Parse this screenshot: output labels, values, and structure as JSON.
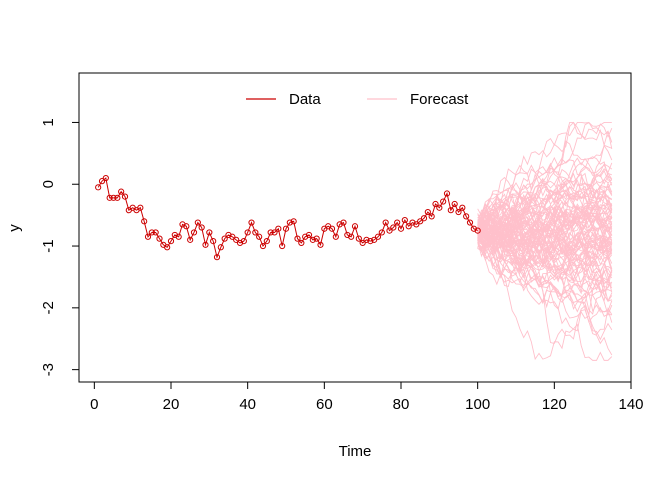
{
  "chart_data": {
    "type": "line",
    "title": "",
    "xlabel": "Time",
    "ylabel": "y",
    "xlim": [
      -4,
      140
    ],
    "ylim": [
      -3.2,
      1.8
    ],
    "xticks": [
      0,
      20,
      40,
      60,
      80,
      100,
      120,
      140
    ],
    "yticks": [
      -3,
      -2,
      -1,
      0,
      1
    ],
    "legend": {
      "placement": "top-center",
      "entries": [
        {
          "label": "Data",
          "color": "#cc0000"
        },
        {
          "label": "Forecast",
          "color": "#ffc0cb"
        }
      ]
    },
    "series": [
      {
        "name": "Data",
        "color": "#cc0000",
        "markers": "open-circle",
        "x": [
          1,
          2,
          3,
          4,
          5,
          6,
          7,
          8,
          9,
          10,
          11,
          12,
          13,
          14,
          15,
          16,
          17,
          18,
          19,
          20,
          21,
          22,
          23,
          24,
          25,
          26,
          27,
          28,
          29,
          30,
          31,
          32,
          33,
          34,
          35,
          36,
          37,
          38,
          39,
          40,
          41,
          42,
          43,
          44,
          45,
          46,
          47,
          48,
          49,
          50,
          51,
          52,
          53,
          54,
          55,
          56,
          57,
          58,
          59,
          60,
          61,
          62,
          63,
          64,
          65,
          66,
          67,
          68,
          69,
          70,
          71,
          72,
          73,
          74,
          75,
          76,
          77,
          78,
          79,
          80,
          81,
          82,
          83,
          84,
          85,
          86,
          87,
          88,
          89,
          90,
          91,
          92,
          93,
          94,
          95,
          96,
          97,
          98,
          99,
          100
        ],
        "y": [
          -0.05,
          0.05,
          0.1,
          -0.22,
          -0.22,
          -0.22,
          -0.12,
          -0.2,
          -0.42,
          -0.38,
          -0.42,
          -0.38,
          -0.6,
          -0.85,
          -0.78,
          -0.78,
          -0.88,
          -0.98,
          -1.02,
          -0.92,
          -0.82,
          -0.85,
          -0.65,
          -0.68,
          -0.9,
          -0.78,
          -0.62,
          -0.7,
          -0.98,
          -0.78,
          -0.92,
          -1.18,
          -1.02,
          -0.88,
          -0.82,
          -0.85,
          -0.9,
          -0.95,
          -0.92,
          -0.78,
          -0.62,
          -0.78,
          -0.85,
          -1.0,
          -0.92,
          -0.78,
          -0.78,
          -0.72,
          -1.0,
          -0.72,
          -0.62,
          -0.6,
          -0.88,
          -0.95,
          -0.85,
          -0.82,
          -0.9,
          -0.88,
          -0.98,
          -0.72,
          -0.68,
          -0.72,
          -0.85,
          -0.65,
          -0.62,
          -0.82,
          -0.85,
          -0.68,
          -0.88,
          -0.95,
          -0.9,
          -0.92,
          -0.9,
          -0.85,
          -0.78,
          -0.62,
          -0.75,
          -0.7,
          -0.62,
          -0.72,
          -0.58,
          -0.68,
          -0.62,
          -0.65,
          -0.6,
          -0.55,
          -0.45,
          -0.52,
          -0.32,
          -0.38,
          -0.28,
          -0.15,
          -0.42,
          -0.32,
          -0.45,
          -0.38,
          -0.52,
          -0.62,
          -0.72,
          -0.75
        ]
      },
      {
        "name": "Forecast",
        "color": "#ffc0cb",
        "x_range": [
          100,
          135
        ],
        "n_paths": 100,
        "start_value": -0.75,
        "envelope_top_at_end": 1.0,
        "envelope_bottom_at_end": -2.85
      }
    ]
  }
}
